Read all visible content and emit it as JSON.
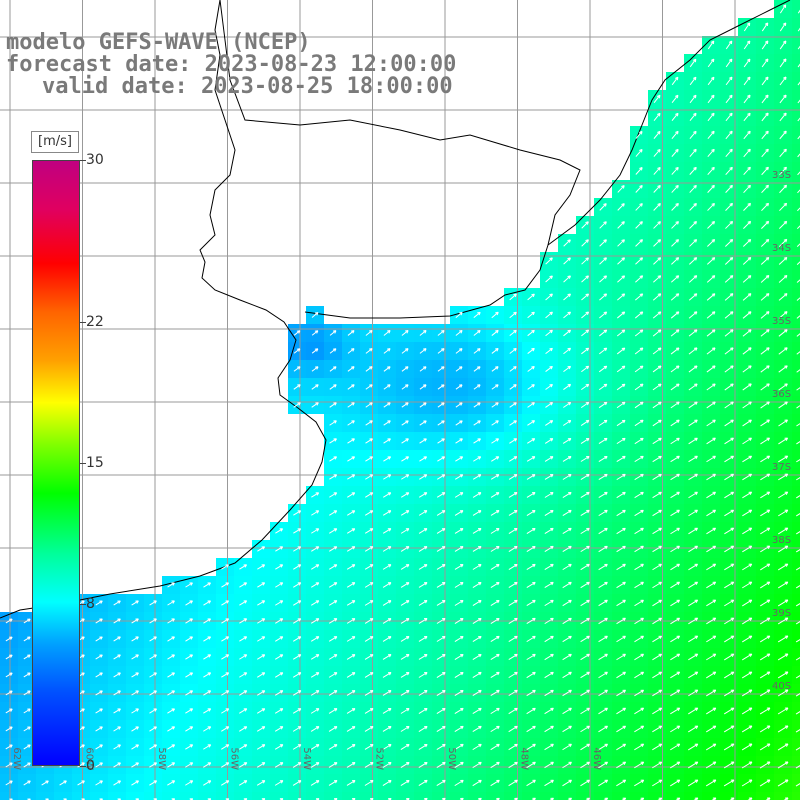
{
  "title": {
    "line1": "modelo GEFS-WAVE (NCEP)",
    "line2": "forecast date: 2023-08-23 12:00:00",
    "line3": "valid date: 2023-08-25 18:00:00"
  },
  "colorbar": {
    "unit": "[m/s]",
    "ticks": [
      {
        "label": "30",
        "value": 30
      },
      {
        "label": "22",
        "value": 22
      },
      {
        "label": "15",
        "value": 15
      },
      {
        "label": "8",
        "value": 8
      },
      {
        "label": "0",
        "value": 0
      }
    ],
    "min": 0,
    "max": 30
  },
  "map": {
    "lat_labels": [
      "33S",
      "34S",
      "35S",
      "36S",
      "37S",
      "38S",
      "39S",
      "40S"
    ],
    "lon_labels": [
      "62W",
      "60W",
      "58W",
      "56W",
      "54W",
      "52W",
      "50W",
      "48W",
      "46W"
    ],
    "land_color": "#ffffff",
    "grid_color": "#999999",
    "arrow_color": "#ffffff"
  }
}
